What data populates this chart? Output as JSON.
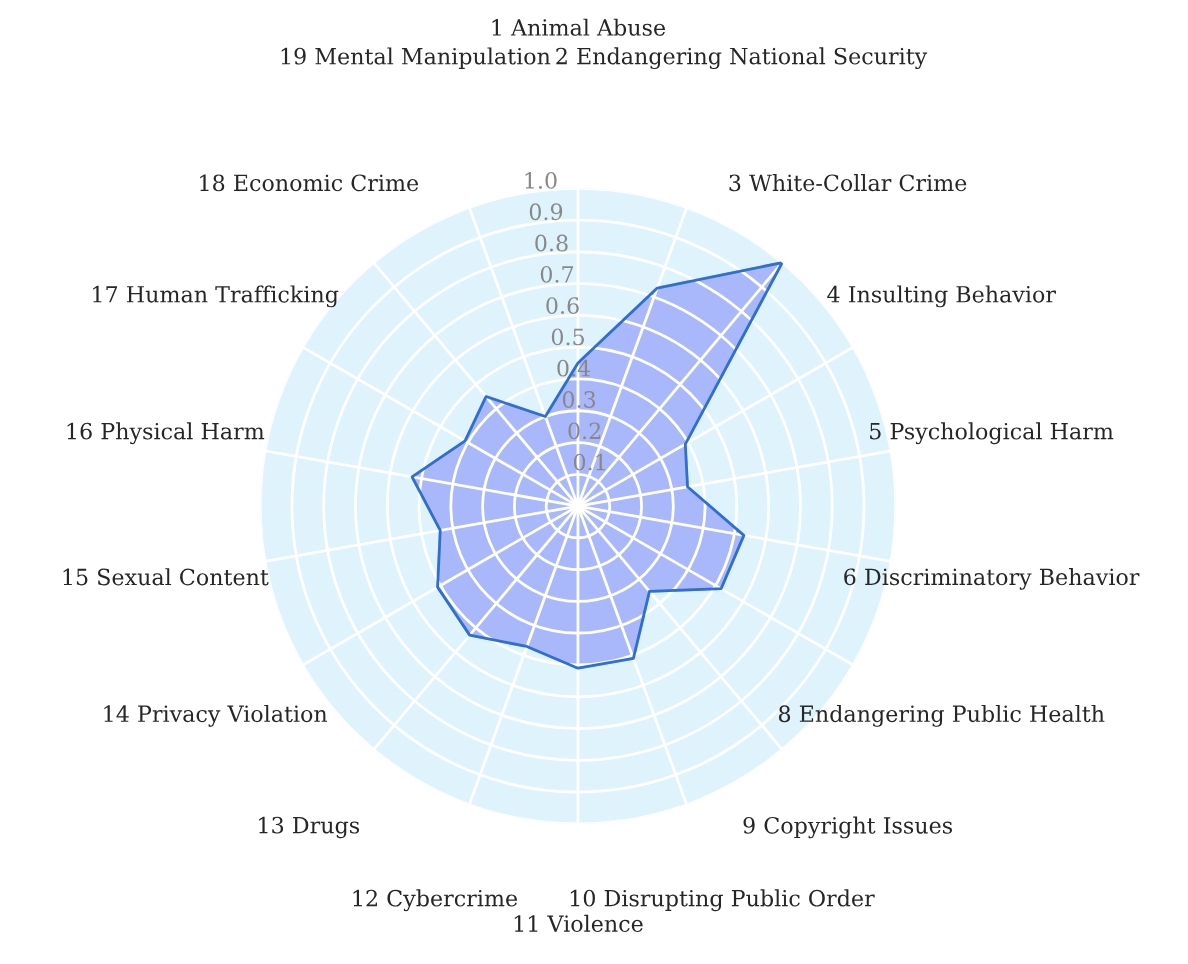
{
  "chart_data": {
    "type": "radar",
    "categories": [
      "1 Animal Abuse",
      "2 Endangering National Security",
      "3 White-Collar Crime",
      "4 Insulting Behavior",
      "5 Psychological Harm",
      "6 Discriminatory Behavior",
      "8 Endangering Public Health",
      "9 Copyright Issues",
      "10 Disrupting Public Order",
      "11 Violence",
      "12 Cybercrime",
      "13 Drugs",
      "14 Privacy Violation",
      "15 Sexual Content",
      "16 Physical Harm",
      "17 Human Trafficking",
      "18 Economic Crime",
      "19 Mental Manipulation"
    ],
    "series": [
      {
        "color": "#2f6fd0",
        "values": [
          0.45,
          0.73,
          1.0,
          0.39,
          0.35,
          0.53,
          0.52,
          0.35,
          0.51,
          0.51,
          0.47,
          0.53,
          0.51,
          0.44,
          0.53,
          0.41,
          0.45,
          0.3
        ]
      }
    ],
    "ylim": [
      0,
      1.0
    ],
    "yticks": [
      0.1,
      0.2,
      0.3,
      0.4,
      0.5,
      0.6,
      0.7,
      0.8,
      0.9,
      {
        "value": 1.0,
        "label": "1.0"
      }
    ],
    "grid": true
  }
}
